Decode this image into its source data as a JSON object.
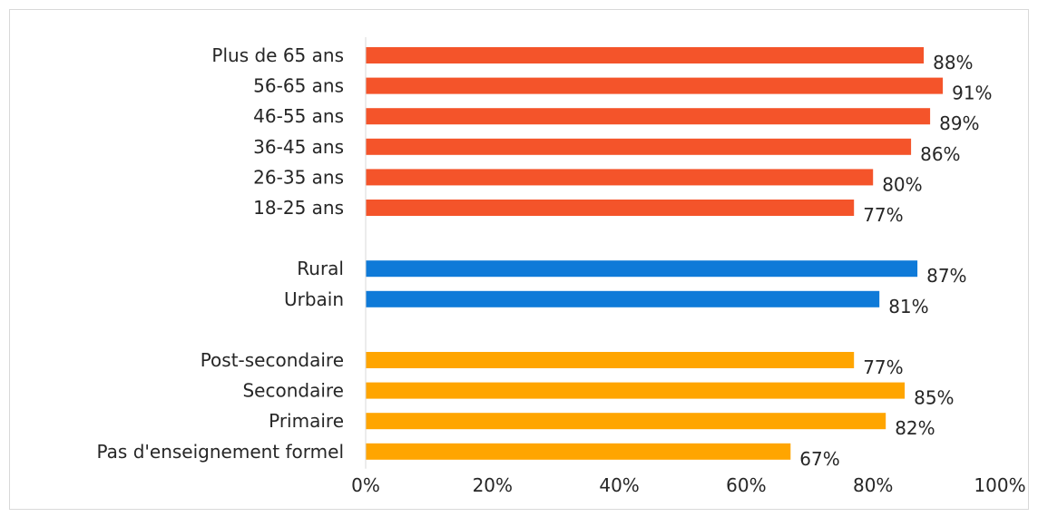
{
  "chart_data": {
    "type": "bar",
    "orientation": "horizontal",
    "xlim": [
      0,
      100
    ],
    "x_ticks": [
      "0%",
      "20%",
      "40%",
      "60%",
      "80%",
      "100%"
    ],
    "grid": false,
    "legend": "none",
    "groups": [
      {
        "color": "#F4542A",
        "bars": [
          {
            "label": "Plus de 65 ans",
            "value": 88,
            "value_label": "88%"
          },
          {
            "label": "56-65 ans",
            "value": 91,
            "value_label": "91%"
          },
          {
            "label": "46-55 ans",
            "value": 89,
            "value_label": "89%"
          },
          {
            "label": "36-45 ans",
            "value": 86,
            "value_label": "86%"
          },
          {
            "label": "26-35 ans",
            "value": 80,
            "value_label": "80%"
          },
          {
            "label": "18-25 ans",
            "value": 77,
            "value_label": "77%"
          }
        ]
      },
      {
        "color": "#0F7AD8",
        "bars": [
          {
            "label": "Rural",
            "value": 87,
            "value_label": "87%"
          },
          {
            "label": "Urbain",
            "value": 81,
            "value_label": "81%"
          }
        ]
      },
      {
        "color": "#FFA500",
        "bars": [
          {
            "label": "Post-secondaire",
            "value": 77,
            "value_label": "77%"
          },
          {
            "label": "Secondaire",
            "value": 85,
            "value_label": "85%"
          },
          {
            "label": "Primaire",
            "value": 82,
            "value_label": "82%"
          },
          {
            "label": "Pas d'enseignement formel",
            "value": 67,
            "value_label": "67%"
          }
        ]
      }
    ]
  }
}
